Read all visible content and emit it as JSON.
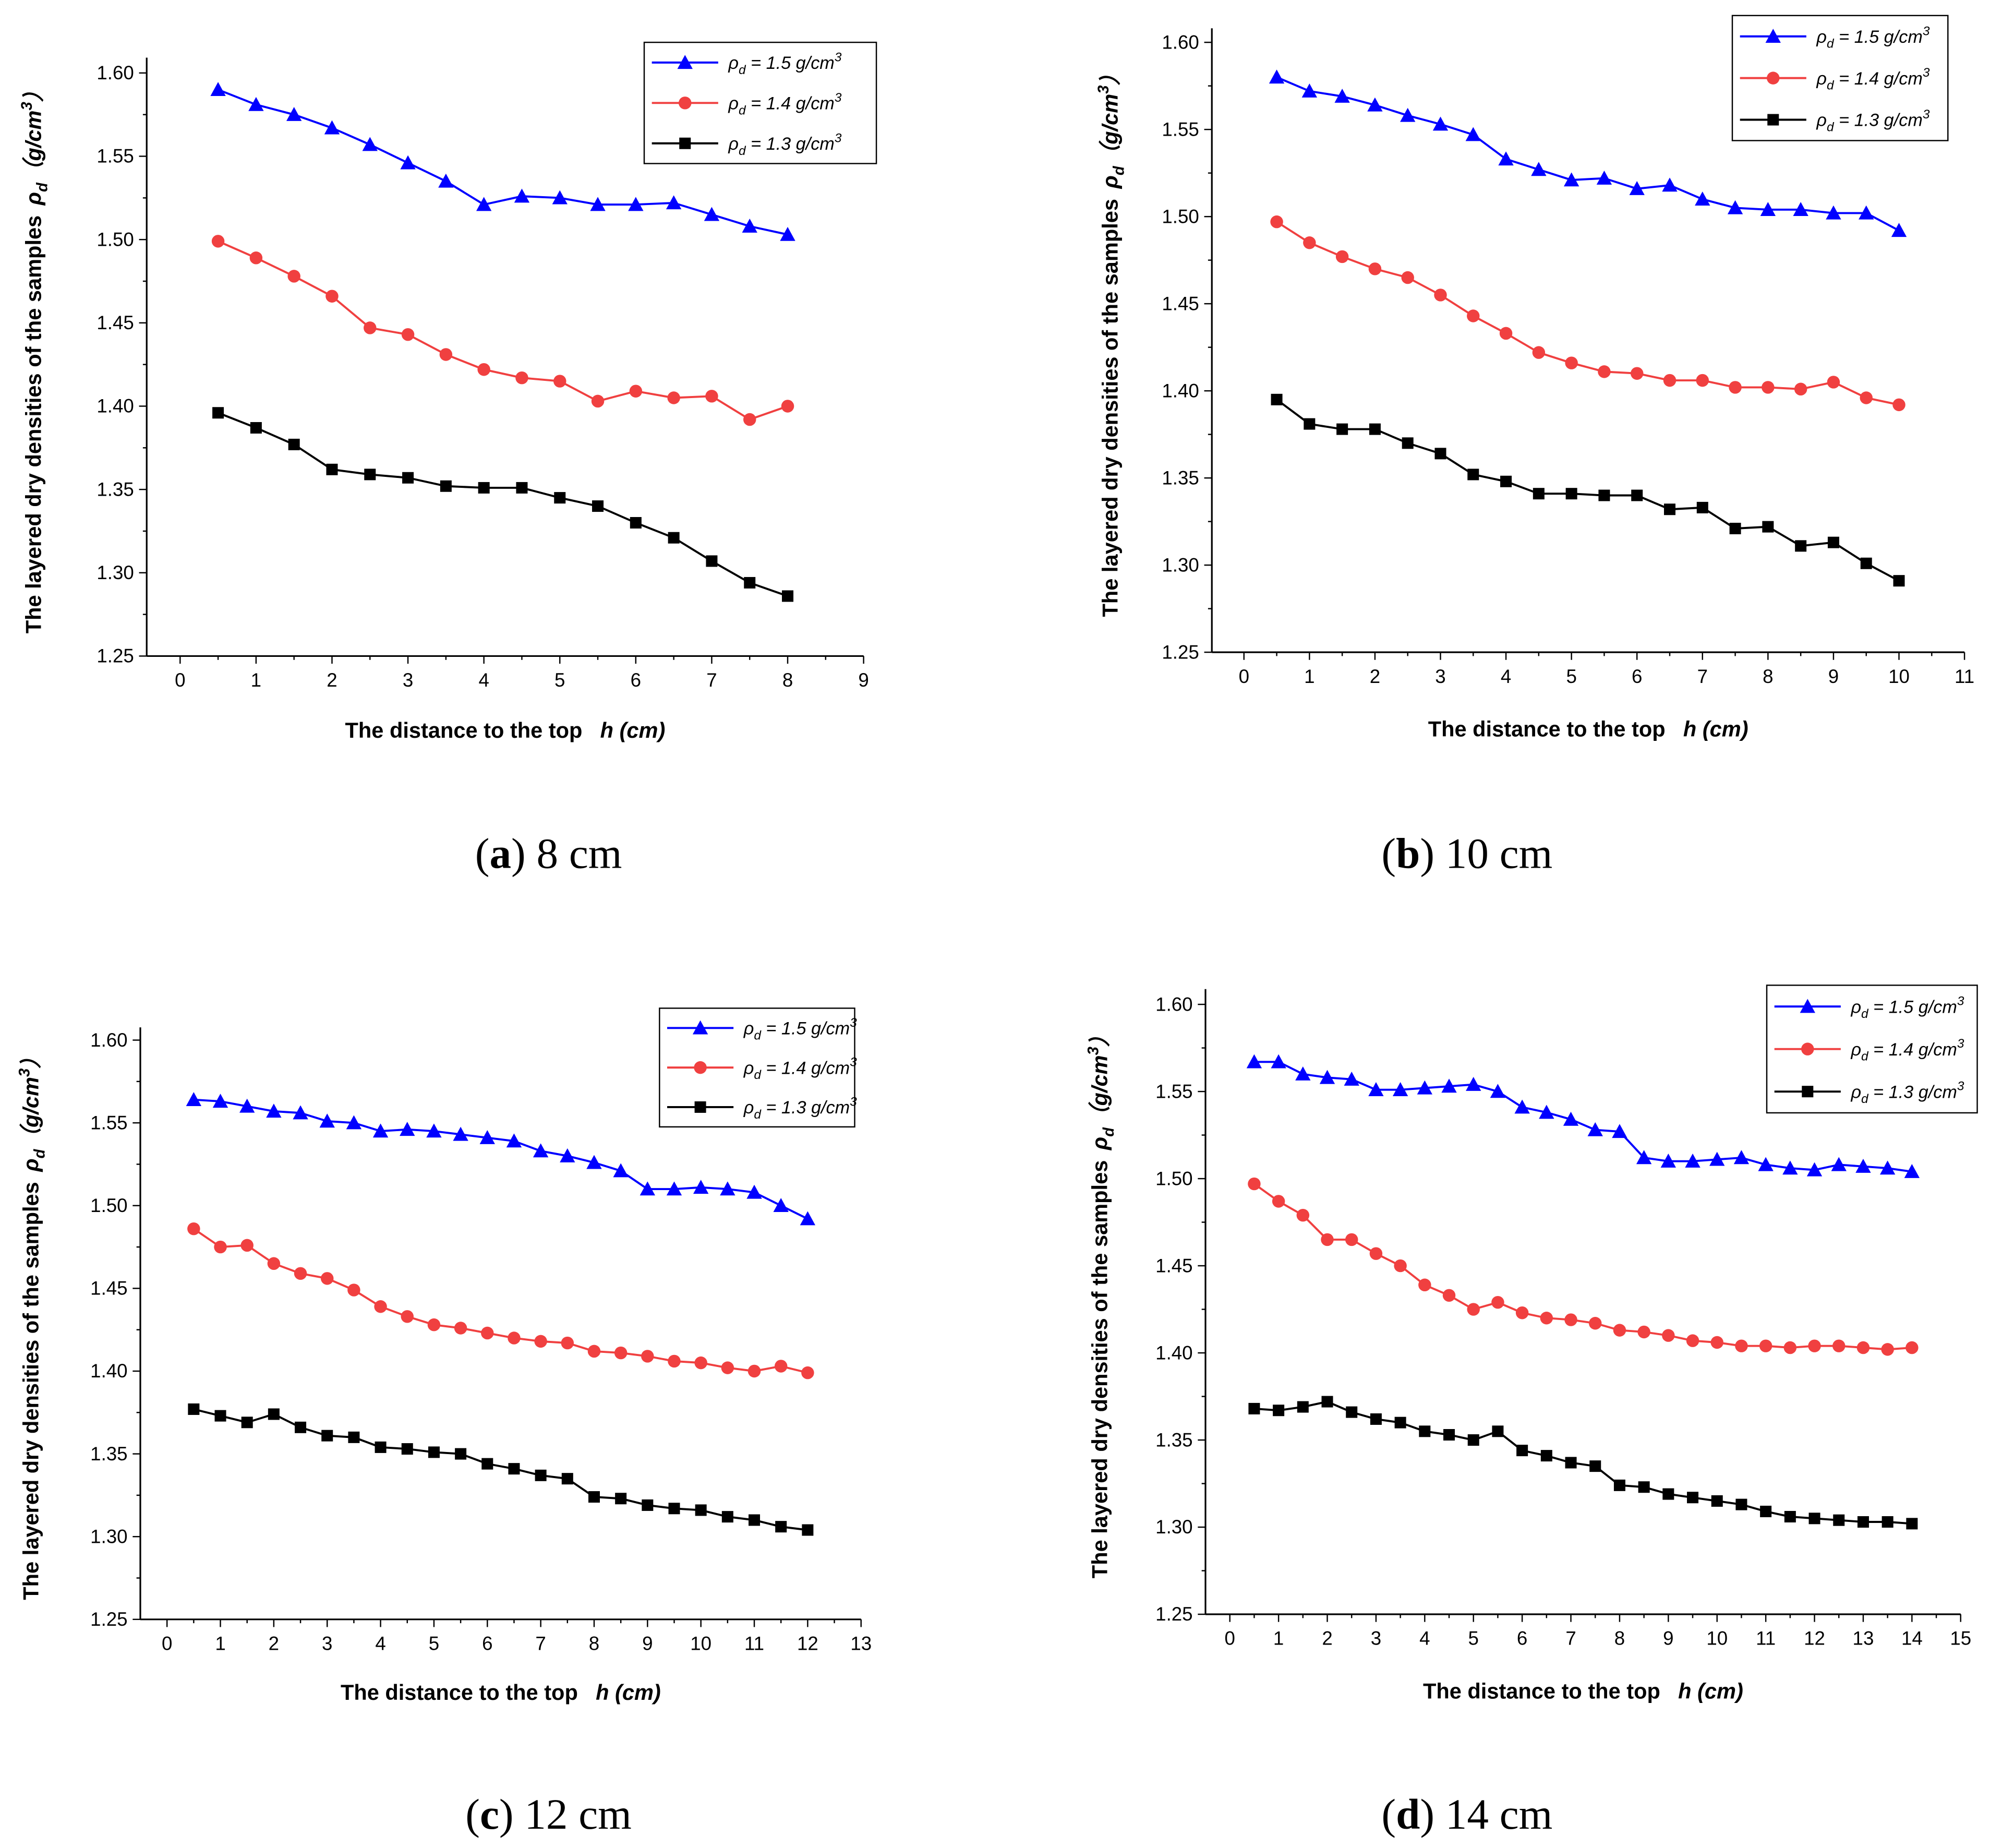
{
  "legend_labels": [
    {
      "symbol": "ρ",
      "sub": "d",
      "text": " = 1.5 g/cm",
      "sup": "3"
    },
    {
      "symbol": "ρ",
      "sub": "d",
      "text": " = 1.4 g/cm",
      "sup": "3"
    },
    {
      "symbol": "ρ",
      "sub": "d",
      "text": " = 1.3 g/cm",
      "sup": "3"
    }
  ],
  "colors": {
    "s15": "#0000ff",
    "s14": "#f04040",
    "s13": "#000000"
  },
  "chart_data": [
    {
      "type": "line",
      "caption_letter": "a",
      "caption_text": " 8 cm",
      "xlabel": "The distance to the top",
      "xlabel_var": "h (cm)",
      "ylabel": "The layered dry densities of the samples",
      "ylabel_symbol": "ρ",
      "ylabel_sub": "d",
      "ylabel_unit": "（g/cm",
      "ylabel_sup": "3",
      "ylabel_close": "）",
      "xlim": [
        -0.44,
        9
      ],
      "ylim": [
        1.25,
        1.6
      ],
      "xticks": [
        0,
        1,
        2,
        3,
        4,
        5,
        6,
        7,
        8,
        9
      ],
      "yticks": [
        "1.25",
        "1.30",
        "1.35",
        "1.40",
        "1.45",
        "1.50",
        "1.55",
        "1.60"
      ],
      "legend": "top-right",
      "x": [
        0.5,
        1,
        1.5,
        2,
        2.5,
        3,
        3.5,
        4,
        4.5,
        5,
        5.5,
        6,
        6.5,
        7,
        7.5,
        8
      ],
      "series": [
        {
          "name": "ρd = 1.5 g/cm3",
          "marker": "triangle",
          "values": [
            1.59,
            1.581,
            1.575,
            1.567,
            1.557,
            1.546,
            1.535,
            1.521,
            1.526,
            1.525,
            1.521,
            1.521,
            1.522,
            1.515,
            1.508,
            1.503
          ]
        },
        {
          "name": "ρd = 1.4 g/cm3",
          "marker": "circle",
          "values": [
            1.499,
            1.489,
            1.478,
            1.466,
            1.447,
            1.443,
            1.431,
            1.422,
            1.417,
            1.415,
            1.403,
            1.409,
            1.405,
            1.406,
            1.392,
            1.4
          ]
        },
        {
          "name": "ρd = 1.3 g/cm3",
          "marker": "square",
          "values": [
            1.396,
            1.387,
            1.377,
            1.362,
            1.359,
            1.357,
            1.352,
            1.351,
            1.351,
            1.345,
            1.34,
            1.33,
            1.321,
            1.307,
            1.294,
            1.286
          ]
        }
      ]
    },
    {
      "type": "line",
      "caption_letter": "b",
      "caption_text": " 10 cm",
      "xlabel": "The distance to the top",
      "xlabel_var": "h (cm)",
      "ylabel": "The layered dry densities of the samples",
      "ylabel_symbol": "ρ",
      "ylabel_sub": "d",
      "ylabel_unit": "（g/cm",
      "ylabel_sup": "3",
      "ylabel_close": "）",
      "xlim": [
        -0.49,
        11
      ],
      "ylim": [
        1.25,
        1.6
      ],
      "xticks": [
        0,
        1,
        2,
        3,
        4,
        5,
        6,
        7,
        8,
        9,
        10,
        11
      ],
      "yticks": [
        "1.25",
        "1.30",
        "1.35",
        "1.40",
        "1.45",
        "1.50",
        "1.55",
        "1.60"
      ],
      "legend": "top-right",
      "x": [
        0.5,
        1,
        1.5,
        2,
        2.5,
        3,
        3.5,
        4,
        4.5,
        5,
        5.5,
        6,
        6.5,
        7,
        7.5,
        8,
        8.5,
        9,
        9.5,
        10
      ],
      "series": [
        {
          "name": "ρd = 1.5 g/cm3",
          "marker": "triangle",
          "values": [
            1.58,
            1.572,
            1.569,
            1.564,
            1.558,
            1.553,
            1.547,
            1.533,
            1.527,
            1.521,
            1.522,
            1.516,
            1.518,
            1.51,
            1.505,
            1.504,
            1.504,
            1.502,
            1.502,
            1.492
          ]
        },
        {
          "name": "ρd = 1.4 g/cm3",
          "marker": "circle",
          "values": [
            1.497,
            1.485,
            1.477,
            1.47,
            1.465,
            1.455,
            1.443,
            1.433,
            1.422,
            1.416,
            1.411,
            1.41,
            1.406,
            1.406,
            1.402,
            1.402,
            1.401,
            1.405,
            1.396,
            1.392
          ]
        },
        {
          "name": "ρd = 1.3 g/cm3",
          "marker": "square",
          "values": [
            1.395,
            1.381,
            1.378,
            1.378,
            1.37,
            1.364,
            1.352,
            1.348,
            1.341,
            1.341,
            1.34,
            1.34,
            1.332,
            1.333,
            1.321,
            1.322,
            1.311,
            1.313,
            1.301,
            1.291
          ]
        }
      ]
    },
    {
      "type": "line",
      "caption_letter": "c",
      "caption_text": " 12 cm",
      "xlabel": "The distance to the top",
      "xlabel_var": "h (cm)",
      "ylabel": "The layered dry densities of the samples",
      "ylabel_symbol": "ρ",
      "ylabel_sub": "d",
      "ylabel_unit": "（g/cm",
      "ylabel_sup": "3",
      "ylabel_close": "）",
      "xlim": [
        -0.5,
        13
      ],
      "ylim": [
        1.25,
        1.6
      ],
      "xticks": [
        0,
        1,
        2,
        3,
        4,
        5,
        6,
        7,
        8,
        9,
        10,
        11,
        12,
        13
      ],
      "yticks": [
        "1.25",
        "1.30",
        "1.35",
        "1.40",
        "1.45",
        "1.50",
        "1.55",
        "1.60"
      ],
      "legend": "top-right",
      "x": [
        0.5,
        1,
        1.5,
        2,
        2.5,
        3,
        3.5,
        4,
        4.5,
        5,
        5.5,
        6,
        6.5,
        7,
        7.5,
        8,
        8.5,
        9,
        9.5,
        10,
        10.5,
        11,
        11.5,
        12
      ],
      "series": [
        {
          "name": "ρd = 1.5 g/cm3",
          "marker": "triangle",
          "values": [
            1.564,
            1.563,
            1.56,
            1.557,
            1.556,
            1.551,
            1.55,
            1.545,
            1.546,
            1.545,
            1.543,
            1.541,
            1.539,
            1.533,
            1.53,
            1.526,
            1.521,
            1.51,
            1.51,
            1.511,
            1.51,
            1.508,
            1.5,
            1.492
          ]
        },
        {
          "name": "ρd = 1.4 g/cm3",
          "marker": "circle",
          "values": [
            1.486,
            1.475,
            1.476,
            1.465,
            1.459,
            1.456,
            1.449,
            1.439,
            1.433,
            1.428,
            1.426,
            1.423,
            1.42,
            1.418,
            1.417,
            1.412,
            1.411,
            1.409,
            1.406,
            1.405,
            1.402,
            1.4,
            1.403,
            1.399
          ]
        },
        {
          "name": "ρd = 1.3 g/cm3",
          "marker": "square",
          "values": [
            1.377,
            1.373,
            1.369,
            1.374,
            1.366,
            1.361,
            1.36,
            1.354,
            1.353,
            1.351,
            1.35,
            1.344,
            1.341,
            1.337,
            1.335,
            1.324,
            1.323,
            1.319,
            1.317,
            1.316,
            1.312,
            1.31,
            1.306,
            1.304
          ]
        }
      ]
    },
    {
      "type": "line",
      "caption_letter": "d",
      "caption_text": " 14 cm",
      "xlabel": "The distance to the top",
      "xlabel_var": "h (cm)",
      "ylabel": "The layered dry densities of the samples",
      "ylabel_symbol": "ρ",
      "ylabel_sub": "d",
      "ylabel_unit": "（g/cm",
      "ylabel_sup": "3",
      "ylabel_close": "）",
      "xlim": [
        -0.5,
        15
      ],
      "ylim": [
        1.25,
        1.6
      ],
      "xticks": [
        0,
        1,
        2,
        3,
        4,
        5,
        6,
        7,
        8,
        9,
        10,
        11,
        12,
        13,
        14,
        15
      ],
      "yticks": [
        "1.25",
        "1.30",
        "1.35",
        "1.40",
        "1.45",
        "1.50",
        "1.55",
        "1.60"
      ],
      "legend": "top-right",
      "x": [
        0.5,
        1,
        1.5,
        2,
        2.5,
        3,
        3.5,
        4,
        4.5,
        5,
        5.5,
        6,
        6.5,
        7,
        7.5,
        8,
        8.5,
        9,
        9.5,
        10,
        10.5,
        11,
        11.5,
        12,
        12.5,
        13,
        13.5,
        14
      ],
      "series": [
        {
          "name": "ρd = 1.5 g/cm3",
          "marker": "triangle",
          "values": [
            1.567,
            1.567,
            1.56,
            1.558,
            1.557,
            1.551,
            1.551,
            1.552,
            1.553,
            1.554,
            1.55,
            1.541,
            1.538,
            1.534,
            1.528,
            1.527,
            1.512,
            1.51,
            1.51,
            1.511,
            1.512,
            1.508,
            1.506,
            1.505,
            1.508,
            1.507,
            1.506,
            1.504
          ]
        },
        {
          "name": "ρd = 1.4 g/cm3",
          "marker": "circle",
          "values": [
            1.497,
            1.487,
            1.479,
            1.465,
            1.465,
            1.457,
            1.45,
            1.439,
            1.433,
            1.425,
            1.429,
            1.423,
            1.42,
            1.419,
            1.417,
            1.413,
            1.412,
            1.41,
            1.407,
            1.406,
            1.404,
            1.404,
            1.403,
            1.404,
            1.404,
            1.403,
            1.402,
            1.403
          ]
        },
        {
          "name": "ρd = 1.3 g/cm3",
          "marker": "square",
          "values": [
            1.368,
            1.367,
            1.369,
            1.372,
            1.366,
            1.362,
            1.36,
            1.355,
            1.353,
            1.35,
            1.355,
            1.344,
            1.341,
            1.337,
            1.335,
            1.324,
            1.323,
            1.319,
            1.317,
            1.315,
            1.313,
            1.309,
            1.306,
            1.305,
            1.304,
            1.303,
            1.303,
            1.302
          ]
        }
      ]
    }
  ]
}
